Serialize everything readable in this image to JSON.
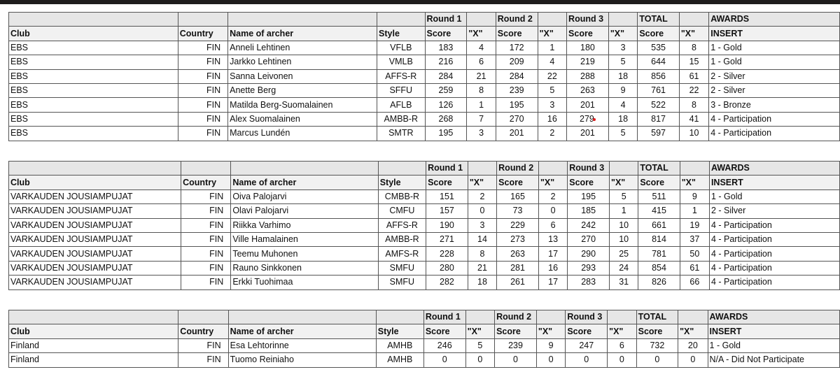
{
  "header": {
    "row1": [
      "",
      "",
      "",
      "",
      "Round 1",
      "",
      "Round 2",
      "",
      "Round 3",
      "",
      "TOTAL",
      "",
      "AWARDS"
    ],
    "row2": [
      "Club",
      "Country",
      "Name of archer",
      "Style",
      "Score",
      "\"X\"",
      "Score",
      "\"X\"",
      "Score",
      "\"X\"",
      "Score",
      "\"X\"",
      "INSERT"
    ]
  },
  "tables": [
    {
      "rows": [
        [
          "EBS",
          "FIN",
          "Anneli Lehtinen",
          "VFLB",
          "183",
          "4",
          "172",
          "1",
          "180",
          "3",
          "535",
          "8",
          "1 - Gold"
        ],
        [
          "EBS",
          "FIN",
          "Jarkko Lehtinen",
          "VMLB",
          "216",
          "6",
          "209",
          "4",
          "219",
          "5",
          "644",
          "15",
          "1 - Gold"
        ],
        [
          "EBS",
          "FIN",
          "Sanna Leivonen",
          "AFFS-R",
          "284",
          "21",
          "284",
          "22",
          "288",
          "18",
          "856",
          "61",
          "2 - Silver"
        ],
        [
          "EBS",
          "FIN",
          "Anette Berg",
          "SFFU",
          "259",
          "8",
          "239",
          "5",
          "263",
          "9",
          "761",
          "22",
          "2 - Silver"
        ],
        [
          "EBS",
          "FIN",
          "Matilda Berg-Suomalainen",
          "AFLB",
          "126",
          "1",
          "195",
          "3",
          "201",
          "4",
          "522",
          "8",
          "3 - Bronze"
        ],
        [
          "EBS",
          "FIN",
          "Alex Suomalainen",
          "AMBB-R",
          "268",
          "7",
          "270",
          "16",
          "279",
          "18",
          "817",
          "41",
          "4 - Participation"
        ],
        [
          "EBS",
          "FIN",
          "Marcus Lundén",
          "SMTR",
          "195",
          "3",
          "201",
          "2",
          "201",
          "5",
          "597",
          "10",
          "4 - Participation"
        ]
      ]
    },
    {
      "rows": [
        [
          "VARKAUDEN JOUSIAMPUJAT",
          "FIN",
          "Oiva Palojarvi",
          "CMBB-R",
          "151",
          "2",
          "165",
          "2",
          "195",
          "5",
          "511",
          "9",
          "1 - Gold"
        ],
        [
          "VARKAUDEN JOUSIAMPUJAT",
          "FIN",
          "Olavi Palojarvi",
          "CMFU",
          "157",
          "0",
          "73",
          "0",
          "185",
          "1",
          "415",
          "1",
          "2 - Silver"
        ],
        [
          "VARKAUDEN JOUSIAMPUJAT",
          "FIN",
          "Riikka Varhimo",
          "AFFS-R",
          "190",
          "3",
          "229",
          "6",
          "242",
          "10",
          "661",
          "19",
          "4 - Participation"
        ],
        [
          "VARKAUDEN JOUSIAMPUJAT",
          "FIN",
          "Ville Hamalainen",
          "AMBB-R",
          "271",
          "14",
          "273",
          "13",
          "270",
          "10",
          "814",
          "37",
          "4 - Participation"
        ],
        [
          "VARKAUDEN JOUSIAMPUJAT",
          "FIN",
          "Teemu Muhonen",
          "AMFS-R",
          "228",
          "8",
          "263",
          "17",
          "290",
          "25",
          "781",
          "50",
          "4 - Participation"
        ],
        [
          "VARKAUDEN JOUSIAMPUJAT",
          "FIN",
          "Rauno Sinkkonen",
          "SMFU",
          "280",
          "21",
          "281",
          "16",
          "293",
          "24",
          "854",
          "61",
          "4 - Participation"
        ],
        [
          "VARKAUDEN JOUSIAMPUJAT",
          "FIN",
          "Erkki Tuohimaa",
          "SMFU",
          "282",
          "18",
          "261",
          "17",
          "283",
          "31",
          "826",
          "66",
          "4 - Participation"
        ]
      ]
    },
    {
      "rows": [
        [
          "Finland",
          "FIN",
          "Esa Lehtorinne",
          "AMHB",
          "246",
          "5",
          "239",
          "9",
          "247",
          "6",
          "732",
          "20",
          "1 - Gold"
        ],
        [
          "Finland",
          "FIN",
          "Tuomo Reiniaho",
          "AMHB",
          "0",
          "0",
          "0",
          "0",
          "0",
          "0",
          "0",
          "0",
          "N/A - Did Not Participate"
        ]
      ]
    }
  ],
  "colors": {
    "header_bg": "#e6e6e6",
    "grid": "#555555",
    "comment_marker": "#e21b1b",
    "titlebar": "#1f1d1d"
  }
}
